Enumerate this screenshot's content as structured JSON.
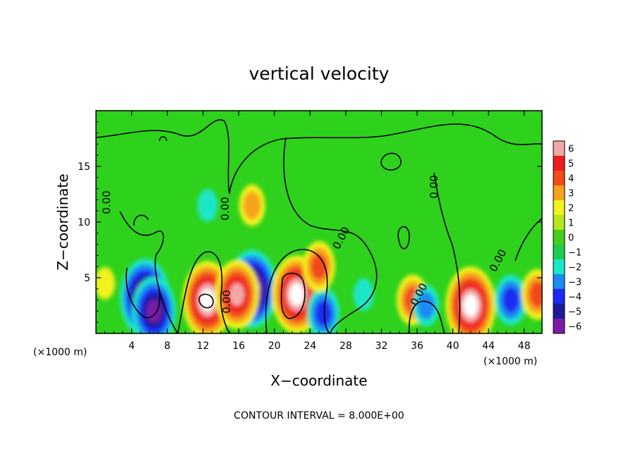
{
  "chart_data": {
    "type": "heatmap",
    "title": "vertical velocity",
    "xlabel": "X−coordinate",
    "ylabel": "Z−coordinate",
    "x_units": "(×1000 m)",
    "x_units_right": "(×1000 m)",
    "xlim": [
      0,
      50
    ],
    "ylim": [
      0,
      20
    ],
    "x_ticks": [
      4,
      8,
      12,
      16,
      20,
      24,
      28,
      32,
      36,
      40,
      44,
      48
    ],
    "y_ticks": [
      5,
      10,
      15
    ],
    "colorbar": {
      "levels": [
        "6",
        "5",
        "4",
        "3",
        "2",
        "1",
        "0",
        "−1",
        "−2",
        "−3",
        "−4",
        "−5",
        "−6"
      ],
      "range": [
        -6,
        6
      ],
      "colors": [
        "#f2a8a8",
        "#ee1c1c",
        "#f24a1a",
        "#f5a21c",
        "#f2f21c",
        "#b6e61c",
        "#46cd1c",
        "#1ccd4e",
        "#1ce6c8",
        "#1c8af2",
        "#1c2af2",
        "#1c1c9a",
        "#7a1ca8"
      ]
    },
    "contour_label": "0.00",
    "footer": "CONTOUR INTERVAL = 8.000E+00",
    "features": [
      {
        "x": 5.5,
        "z": 3.2,
        "w": -7.0
      },
      {
        "x": 6.5,
        "z": 2.0,
        "w": -5.5
      },
      {
        "x": 12.5,
        "z": 3.0,
        "w": 7.0
      },
      {
        "x": 17.5,
        "z": 4.0,
        "w": -6.5
      },
      {
        "x": 15.8,
        "z": 3.5,
        "w": 5.5
      },
      {
        "x": 22.5,
        "z": 3.5,
        "w": 7.0
      },
      {
        "x": 25.5,
        "z": 1.8,
        "w": -4.0
      },
      {
        "x": 25.0,
        "z": 6.0,
        "w": 4.0
      },
      {
        "x": 17.5,
        "z": 11.5,
        "w": 3.0
      },
      {
        "x": 12.5,
        "z": 11.5,
        "w": -1.5
      },
      {
        "x": 35.5,
        "z": 3.0,
        "w": 4.0
      },
      {
        "x": 37.0,
        "z": 2.5,
        "w": -3.0
      },
      {
        "x": 42.0,
        "z": 2.5,
        "w": 7.0
      },
      {
        "x": 46.5,
        "z": 3.0,
        "w": -3.5
      },
      {
        "x": 49.5,
        "z": 3.5,
        "w": 4.0
      },
      {
        "x": 1.0,
        "z": 4.5,
        "w": 2.0
      },
      {
        "x": 30.0,
        "z": 3.5,
        "w": -2.0
      }
    ]
  }
}
